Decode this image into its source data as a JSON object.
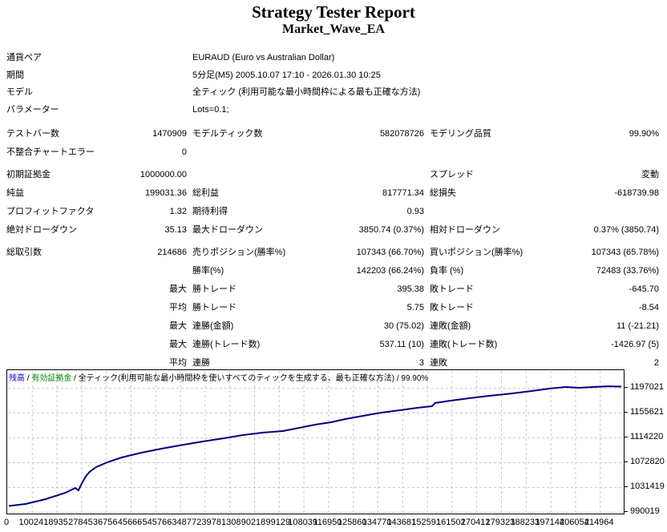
{
  "report": {
    "title": "Strategy Tester Report",
    "subtitle": "Market_Wave_EA",
    "info_rows": [
      {
        "label": "通貨ペア",
        "value": "EURAUD (Euro vs Australian Dollar)"
      },
      {
        "label": "期間",
        "value": "5分足(M5) 2005.10.07 17:10 - 2026.01.30 10:25"
      },
      {
        "label": "モデル",
        "value": "全ティック (利用可能な最小時間枠による最も正確な方法)"
      },
      {
        "label": "パラメーター",
        "value": "Lots=0.1;"
      }
    ],
    "stat_rows": [
      {
        "cells": [
          "テストバー数",
          "1470909",
          "モデルティック数",
          "582078726",
          "モデリング品質",
          "99.90%"
        ],
        "gap": false
      },
      {
        "cells": [
          "不整合チャートエラー",
          "0",
          "",
          "",
          "",
          ""
        ],
        "gap": false
      },
      {
        "cells": [
          "初期証拠金",
          "1000000.00",
          "",
          "",
          "スプレッド",
          "変動"
        ],
        "gap": true
      },
      {
        "cells": [
          "純益",
          "199031.36",
          "総利益",
          "817771.34",
          "総損失",
          "-618739.98"
        ],
        "gap": false
      },
      {
        "cells": [
          "プロフィットファクタ",
          "1.32",
          "期待利得",
          "0.93",
          "",
          ""
        ],
        "gap": false
      },
      {
        "cells": [
          "絶対ドローダウン",
          "35.13",
          "最大ドローダウン",
          "3850.74 (0.37%)",
          "相対ドローダウン",
          "0.37% (3850.74)"
        ],
        "gap": false
      },
      {
        "cells": [
          "総取引数",
          "214686",
          "売りポジション(勝率%)",
          "107343 (66.70%)",
          "買いポジション(勝率%)",
          "107343 (65.78%)"
        ],
        "gap": true
      },
      {
        "cells": [
          "",
          "",
          "勝率(%)",
          "142203 (66.24%)",
          "負率 (%)",
          "72483 (33.76%)"
        ],
        "gap": false
      },
      {
        "cells": [
          "",
          "最大",
          "勝トレード",
          "395.38",
          "敗トレード",
          "-645.70"
        ],
        "gap": false
      },
      {
        "cells": [
          "",
          "平均",
          "勝トレード",
          "5.75",
          "敗トレード",
          "-8.54"
        ],
        "gap": false
      },
      {
        "cells": [
          "",
          "最大",
          "連勝(金額)",
          "30 (75.02)",
          "連敗(金額)",
          "11 (-21.21)"
        ],
        "gap": false
      },
      {
        "cells": [
          "",
          "最大",
          "連勝(トレード数)",
          "537.11 (10)",
          "連敗(トレード数)",
          "-1426.97 (5)"
        ],
        "gap": false
      },
      {
        "cells": [
          "",
          "平均",
          "連勝",
          "3",
          "連敗",
          "2"
        ],
        "gap": false
      }
    ]
  },
  "chart": {
    "balance_label": "残高",
    "equity_label": "有効証拠金",
    "separator": " / ",
    "model_label": "全ティック(利用可能な最小時間枠を使いすべてのティックを生成する、最も正確な方法)",
    "quality_label": "99.90%",
    "colors": {
      "balance_text": "#0000C8",
      "equity_text": "#008000",
      "line": "#000080",
      "grid": "#C8C8C8"
    }
  },
  "chart_data": {
    "type": "line",
    "title": "残高 / 有効証拠金 / 全ティック(利用可能な最小時間枠を使いすべてのティックを生成する、最も正確な方法) / 99.90%",
    "legend_position": "top-left-header",
    "grid": true,
    "xlim": [
      0,
      214686
    ],
    "ylim": [
      990019,
      1203000
    ],
    "y_ticks": [
      "1197021",
      "1155621",
      "1114220",
      "1072820",
      "1031419",
      "990019"
    ],
    "y_tick_values": [
      1197021,
      1155621,
      1114220,
      1072820,
      1031419,
      990019
    ],
    "x_ticks": [
      "0",
      "10024",
      "18935",
      "27845",
      "36756",
      "45666",
      "54576",
      "63487",
      "72397",
      "81308",
      "90218",
      "99129",
      "108039",
      "116950",
      "125860",
      "134770",
      "143681",
      "152591",
      "161502",
      "170412",
      "179323",
      "188233",
      "197144",
      "206054",
      "214964"
    ],
    "series": [
      {
        "name": "残高",
        "color": "#000080",
        "points": [
          [
            0,
            1000000
          ],
          [
            5900,
            1003400
          ],
          [
            12900,
            1011400
          ],
          [
            19900,
            1022100
          ],
          [
            23300,
            1030100
          ],
          [
            24400,
            1026000
          ],
          [
            25500,
            1036700
          ],
          [
            26900,
            1048800
          ],
          [
            28300,
            1056800
          ],
          [
            30600,
            1064800
          ],
          [
            34500,
            1072800
          ],
          [
            39500,
            1080800
          ],
          [
            46500,
            1088800
          ],
          [
            53500,
            1095500
          ],
          [
            61400,
            1102200
          ],
          [
            68100,
            1107500
          ],
          [
            75400,
            1112900
          ],
          [
            82100,
            1118200
          ],
          [
            88900,
            1122200
          ],
          [
            96100,
            1124900
          ],
          [
            101800,
            1130200
          ],
          [
            107400,
            1135600
          ],
          [
            113000,
            1139600
          ],
          [
            118000,
            1144900
          ],
          [
            124200,
            1150300
          ],
          [
            130600,
            1155600
          ],
          [
            137100,
            1159600
          ],
          [
            143200,
            1163600
          ],
          [
            148300,
            1166300
          ],
          [
            149400,
            1171600
          ],
          [
            155000,
            1175600
          ],
          [
            161400,
            1179600
          ],
          [
            168500,
            1183600
          ],
          [
            176300,
            1187600
          ],
          [
            183000,
            1191600
          ],
          [
            189500,
            1195700
          ],
          [
            195100,
            1198300
          ],
          [
            199800,
            1197000
          ],
          [
            204900,
            1198300
          ],
          [
            210000,
            1199500
          ],
          [
            214686,
            1199031
          ]
        ]
      }
    ]
  }
}
